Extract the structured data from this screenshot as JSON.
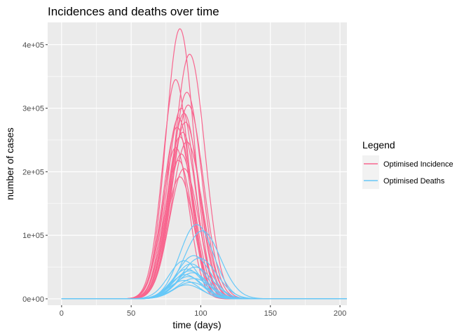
{
  "chart_data": {
    "type": "line",
    "title": "Incidences and deaths over time",
    "xlabel": "time (days)",
    "ylabel": "number of cases",
    "xlim": [
      -10,
      205
    ],
    "ylim": [
      -10000,
      435000
    ],
    "x_ticks": [
      0,
      50,
      100,
      150,
      200
    ],
    "x_tick_labels": [
      "0",
      "50",
      "100",
      "150",
      "200"
    ],
    "y_ticks": [
      0,
      100000,
      200000,
      300000,
      400000
    ],
    "y_tick_labels": [
      "0e+00",
      "1e+05",
      "2e+05",
      "3e+05",
      "4e+05"
    ],
    "grid": true,
    "x_range_of_curves": [
      0,
      205
    ],
    "legend": {
      "title": "Legend",
      "position": "right",
      "entries": [
        {
          "label": "Optimised Incidence",
          "color": "#F8668F"
        },
        {
          "label": "Optimised Deaths",
          "color": "#66C8F8"
        }
      ]
    },
    "series": [
      {
        "group": "Optimised Incidence",
        "peak_day": 85,
        "peak": 425000,
        "width": 10.0
      },
      {
        "group": "Optimised Incidence",
        "peak_day": 92,
        "peak": 385000,
        "width": 11.0
      },
      {
        "group": "Optimised Incidence",
        "peak_day": 82,
        "peak": 345000,
        "width": 9.5
      },
      {
        "group": "Optimised Incidence",
        "peak_day": 90,
        "peak": 325000,
        "width": 10.5
      },
      {
        "group": "Optimised Incidence",
        "peak_day": 91,
        "peak": 305000,
        "width": 11.0
      },
      {
        "group": "Optimised Incidence",
        "peak_day": 86,
        "peak": 300000,
        "width": 10.0
      },
      {
        "group": "Optimised Incidence",
        "peak_day": 88,
        "peak": 292000,
        "width": 10.5
      },
      {
        "group": "Optimised Incidence",
        "peak_day": 84,
        "peak": 285000,
        "width": 9.5
      },
      {
        "group": "Optimised Incidence",
        "peak_day": 89,
        "peak": 278000,
        "width": 10.5
      },
      {
        "group": "Optimised Incidence",
        "peak_day": 83,
        "peak": 270000,
        "width": 10.0
      },
      {
        "group": "Optimised Incidence",
        "peak_day": 87,
        "peak": 262000,
        "width": 10.0
      },
      {
        "group": "Optimised Incidence",
        "peak_day": 85,
        "peak": 255000,
        "width": 9.5
      },
      {
        "group": "Optimised Incidence",
        "peak_day": 90,
        "peak": 247000,
        "width": 11.0
      },
      {
        "group": "Optimised Incidence",
        "peak_day": 82,
        "peak": 238000,
        "width": 9.5
      },
      {
        "group": "Optimised Incidence",
        "peak_day": 86,
        "peak": 228000,
        "width": 10.0
      },
      {
        "group": "Optimised Incidence",
        "peak_day": 84,
        "peak": 218000,
        "width": 10.0
      },
      {
        "group": "Optimised Incidence",
        "peak_day": 88,
        "peak": 205000,
        "width": 10.5
      },
      {
        "group": "Optimised Incidence",
        "peak_day": 85,
        "peak": 192000,
        "width": 10.0
      },
      {
        "group": "Optimised Deaths",
        "peak_day": 97,
        "peak": 117000,
        "width": 12.0
      },
      {
        "group": "Optimised Deaths",
        "peak_day": 101,
        "peak": 107000,
        "width": 13.0
      },
      {
        "group": "Optimised Deaths",
        "peak_day": 95,
        "peak": 68000,
        "width": 12.0
      },
      {
        "group": "Optimised Deaths",
        "peak_day": 99,
        "peak": 64000,
        "width": 12.5
      },
      {
        "group": "Optimised Deaths",
        "peak_day": 88,
        "peak": 60000,
        "width": 11.0
      },
      {
        "group": "Optimised Deaths",
        "peak_day": 93,
        "peak": 55000,
        "width": 11.5
      },
      {
        "group": "Optimised Deaths",
        "peak_day": 96,
        "peak": 50000,
        "width": 12.0
      },
      {
        "group": "Optimised Deaths",
        "peak_day": 90,
        "peak": 47000,
        "width": 11.0
      },
      {
        "group": "Optimised Deaths",
        "peak_day": 92,
        "peak": 44000,
        "width": 11.5
      },
      {
        "group": "Optimised Deaths",
        "peak_day": 94,
        "peak": 41000,
        "width": 11.5
      },
      {
        "group": "Optimised Deaths",
        "peak_day": 89,
        "peak": 38000,
        "width": 11.0
      },
      {
        "group": "Optimised Deaths",
        "peak_day": 91,
        "peak": 35000,
        "width": 11.0
      },
      {
        "group": "Optimised Deaths",
        "peak_day": 95,
        "peak": 32000,
        "width": 12.0
      },
      {
        "group": "Optimised Deaths",
        "peak_day": 88,
        "peak": 29000,
        "width": 11.0
      },
      {
        "group": "Optimised Deaths",
        "peak_day": 93,
        "peak": 26000,
        "width": 11.5
      },
      {
        "group": "Optimised Deaths",
        "peak_day": 90,
        "peak": 22000,
        "width": 11.0
      }
    ]
  },
  "style": {
    "panel_bg": "#EBEBEB",
    "grid_major": "#FFFFFF",
    "legend_key_bg": "#F2F2F2"
  }
}
